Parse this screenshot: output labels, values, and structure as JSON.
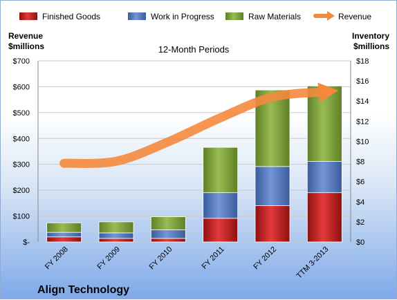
{
  "chart_data": {
    "type": "bar",
    "title": "12-Month Periods",
    "company": "Align Technology",
    "categories": [
      "FY 2008",
      "FY 2009",
      "FY 2010",
      "FY 2011",
      "FY 2012",
      "TTM 3-2013"
    ],
    "series": [
      {
        "name": "Finished Goods",
        "color": "#cc1f1f",
        "axis": "right",
        "values": [
          0.5,
          0.35,
          0.35,
          2.35,
          3.6,
          4.9
        ]
      },
      {
        "name": "Work in Progress",
        "color": "#4f7ac6",
        "axis": "right",
        "values": [
          0.45,
          0.55,
          0.85,
          2.55,
          3.9,
          3.1
        ]
      },
      {
        "name": "Raw Materials",
        "color": "#7fa33a",
        "axis": "right",
        "values": [
          0.95,
          1.1,
          1.3,
          4.5,
          7.6,
          7.5
        ]
      }
    ],
    "line_series": {
      "name": "Revenue",
      "color": "#f4893e",
      "axis": "left",
      "values": [
        304,
        312,
        387,
        480,
        560,
        580
      ]
    },
    "left_axis": {
      "label_line1": "Revenue",
      "label_line2": "$millions",
      "ylim": [
        0,
        700
      ],
      "ticks": [
        0,
        100,
        200,
        300,
        400,
        500,
        600,
        700
      ],
      "tick_labels": [
        "$-",
        "$100",
        "$200",
        "$300",
        "$400",
        "$500",
        "$600",
        "$700"
      ]
    },
    "right_axis": {
      "label_line1": "Inventory",
      "label_line2": "$millions",
      "ylim": [
        0,
        18
      ],
      "ticks": [
        0,
        2,
        4,
        6,
        8,
        10,
        12,
        14,
        16,
        18
      ],
      "tick_labels": [
        "$0",
        "$2",
        "$4",
        "$6",
        "$8",
        "$10",
        "$12",
        "$14",
        "$16",
        "$18"
      ]
    },
    "legend_placement": "top",
    "grid": true
  }
}
